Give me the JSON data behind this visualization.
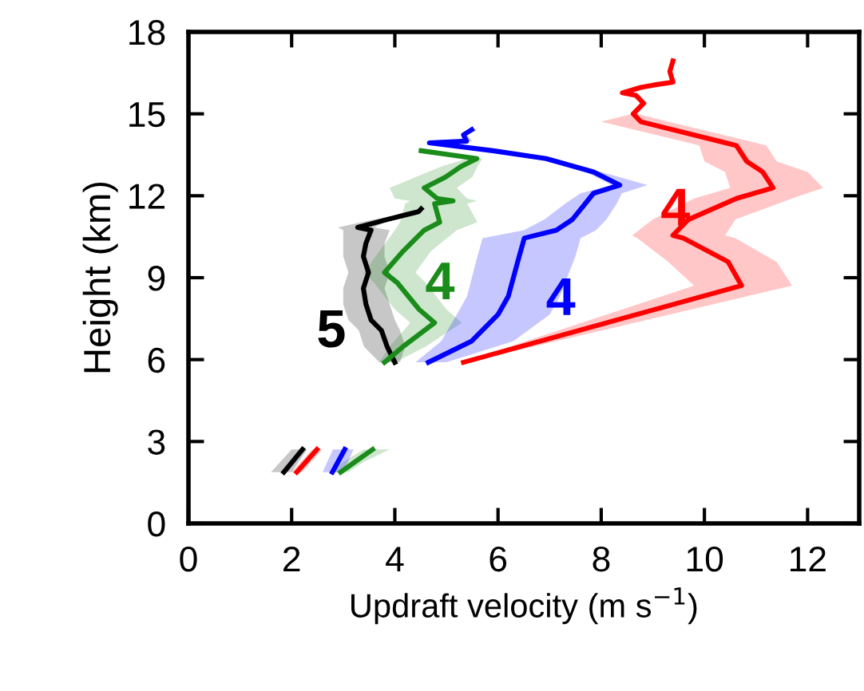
{
  "chart_data": {
    "type": "line",
    "orientation": "horizontal",
    "xlabel": "Updraft velocity (m s$^{−1}$)",
    "ylabel": "Height (km)",
    "xlim": [
      0,
      13
    ],
    "xticks": [
      0,
      2,
      4,
      6,
      8,
      10,
      12
    ],
    "ylim": [
      0,
      18
    ],
    "yticks": [
      0,
      3,
      6,
      9,
      12,
      15,
      18
    ],
    "grid": false,
    "legend": false,
    "series": [
      {
        "color": "#000000",
        "values": [
          4.0,
          3.85,
          3.74,
          3.54,
          3.44,
          3.39,
          3.49,
          3.39,
          3.44,
          3.54,
          3.28,
          3.85,
          4.46,
          4.51,
          null,
          1.85,
          2.21
        ],
        "x": [
          5.9,
          6.48,
          7.07,
          7.45,
          8.03,
          8.61,
          9.19,
          9.78,
          10.26,
          10.74,
          10.84,
          11.13,
          11.42,
          11.52,
          null,
          1.88,
          2.71
        ],
        "lower": [
          3.7,
          3.4,
          3.3,
          3.1,
          3.0,
          3.0,
          3.1,
          3.0,
          3.0,
          3.0,
          2.9,
          3.6,
          4.4,
          4.5,
          null,
          1.6,
          2.0
        ],
        "upper": [
          4.1,
          4.2,
          4.1,
          4.0,
          3.9,
          3.8,
          3.9,
          3.8,
          3.8,
          3.9,
          3.6,
          3.9,
          4.5,
          4.5,
          null,
          2.0,
          2.3
        ]
      },
      {
        "color": "#1a8c1a",
        "values": [
          3.8,
          4.16,
          4.77,
          4.47,
          4.05,
          3.8,
          4.16,
          4.57,
          4.87,
          4.77,
          5.13,
          4.82,
          4.57,
          4.98,
          5.28,
          5.59,
          4.51,
          null,
          2.95,
          3.23,
          3.57
        ],
        "x": [
          5.9,
          6.48,
          7.35,
          7.84,
          8.81,
          9.19,
          9.97,
          10.74,
          11.03,
          11.71,
          11.81,
          11.9,
          12.29,
          12.68,
          13.07,
          13.36,
          13.65,
          null,
          1.88,
          2.26,
          2.71
        ],
        "lower": [
          3.7,
          3.9,
          4.3,
          4.0,
          3.6,
          3.4,
          3.7,
          4.0,
          4.1,
          4.2,
          4.3,
          4.0,
          3.9,
          4.4,
          4.9,
          5.4,
          4.5,
          null,
          2.8,
          3.0,
          3.4
        ],
        "upper": [
          4.0,
          4.6,
          5.3,
          5.0,
          4.6,
          4.4,
          4.7,
          5.2,
          5.6,
          5.4,
          5.6,
          5.4,
          5.2,
          5.5,
          5.6,
          5.7,
          4.6,
          null,
          3.1,
          3.4,
          3.9
        ]
      },
      {
        "color": "#0000ff",
        "values": [
          4.65,
          5.49,
          6.0,
          6.2,
          6.41,
          6.51,
          7.13,
          7.44,
          7.69,
          7.85,
          8.36,
          7.85,
          6.93,
          5.9,
          4.67,
          5.39,
          5.33,
          5.49,
          null,
          2.79,
          3.03
        ],
        "x": [
          5.9,
          6.68,
          7.65,
          8.32,
          9.78,
          10.45,
          10.74,
          11.13,
          11.71,
          12.09,
          12.39,
          12.87,
          13.36,
          13.65,
          13.94,
          14.0,
          14.23,
          14.42,
          null,
          1.88,
          2.71
        ],
        "lower": [
          4.4,
          4.9,
          5.2,
          5.4,
          5.6,
          5.7,
          6.5,
          6.9,
          7.3,
          7.6,
          8.2,
          7.7,
          6.8,
          5.8,
          4.6,
          5.3,
          5.3,
          5.4,
          null,
          2.6,
          2.8
        ],
        "upper": [
          5.0,
          6.3,
          7.0,
          7.2,
          7.5,
          7.6,
          7.9,
          8.1,
          8.3,
          8.4,
          8.9,
          8.0,
          7.1,
          6.0,
          4.8,
          5.5,
          5.4,
          5.6,
          null,
          3.0,
          3.2
        ]
      },
      {
        "color": "#ff0000",
        "values": [
          5.33,
          10.72,
          10.46,
          9.59,
          9.39,
          9.69,
          10.62,
          11.33,
          11.13,
          10.82,
          10.62,
          10.41,
          8.77,
          8.62,
          8.82,
          8.67,
          8.41,
          8.77,
          9.03,
          9.39,
          9.33,
          9.39,
          null,
          2.1,
          2.49
        ],
        "x": [
          5.9,
          8.71,
          9.58,
          10.45,
          10.55,
          11.13,
          11.9,
          12.29,
          12.87,
          13.26,
          13.84,
          13.94,
          14.71,
          15.0,
          15.39,
          15.68,
          15.77,
          15.97,
          16.06,
          16.16,
          16.55,
          16.94,
          null,
          1.88,
          2.71
        ],
        "lower": [
          5.3,
          9.8,
          9.3,
          8.7,
          8.6,
          9.0,
          9.8,
          10.5,
          10.4,
          10.0,
          9.9,
          9.7,
          8.0,
          8.6,
          8.8,
          8.67,
          8.41,
          8.77,
          9.03,
          9.39,
          9.33,
          9.39,
          null,
          2.0,
          2.4
        ],
        "upper": [
          5.4,
          11.7,
          11.4,
          10.6,
          10.4,
          10.6,
          11.7,
          12.3,
          12.0,
          11.4,
          11.2,
          11.0,
          9.3,
          8.7,
          8.9,
          8.67,
          8.41,
          8.77,
          9.03,
          9.39,
          9.33,
          9.39,
          null,
          2.2,
          2.6
        ]
      }
    ],
    "annotations": [
      "5",
      "4",
      "4",
      "4"
    ]
  }
}
